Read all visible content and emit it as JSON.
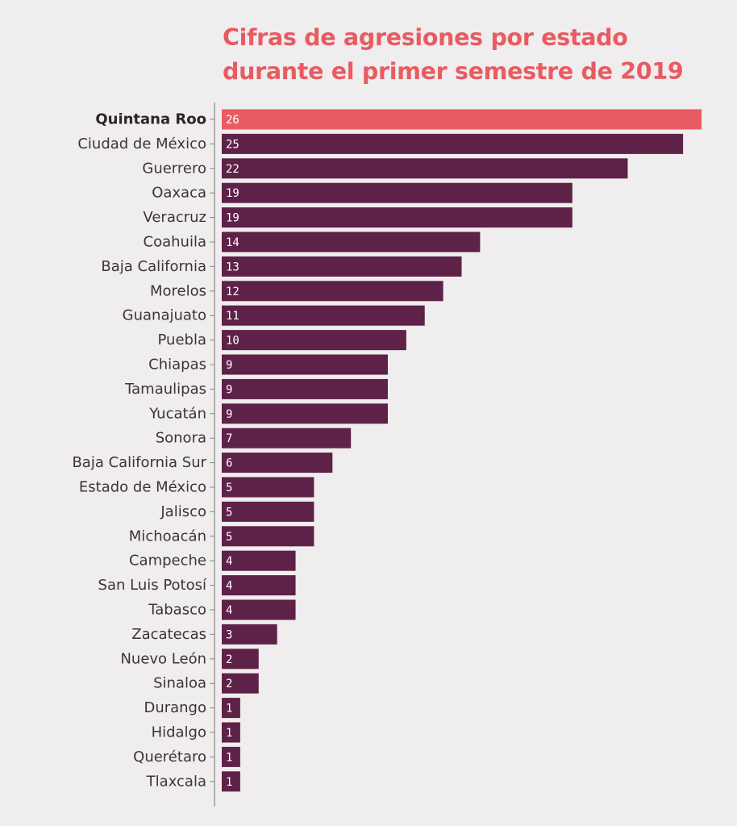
{
  "chart_data": {
    "type": "bar",
    "orientation": "horizontal",
    "title_lines": [
      "Cifras de agresiones por estado",
      "durante el primer semestre de 2019"
    ],
    "categories": [
      "Quintana Roo",
      "Ciudad de México",
      "Guerrero",
      "Oaxaca",
      "Veracruz",
      "Coahuila",
      "Baja California",
      "Morelos",
      "Guanajuato",
      "Puebla",
      "Chiapas",
      "Tamaulipas",
      "Yucatán",
      "Sonora",
      "Baja California Sur",
      "Estado de México",
      "Jalisco",
      "Michoacán",
      "Campeche",
      "San Luis Potosí",
      "Tabasco",
      "Zacatecas",
      "Nuevo León",
      "Sinaloa",
      "Durango",
      "Hidalgo",
      "Querétaro",
      "Tlaxcala"
    ],
    "values": [
      26,
      25,
      22,
      19,
      19,
      14,
      13,
      12,
      11,
      10,
      9,
      9,
      9,
      7,
      6,
      5,
      5,
      5,
      4,
      4,
      4,
      3,
      2,
      2,
      1,
      1,
      1,
      1
    ],
    "highlight_category": "Quintana Roo",
    "xlim": [
      0,
      26
    ],
    "grid": false,
    "data_labels": true,
    "colors": {
      "bar": "#5e2148",
      "highlight": "#e85b62",
      "title": "#e85b62",
      "axis": "#888888",
      "background": "#efeded"
    }
  }
}
